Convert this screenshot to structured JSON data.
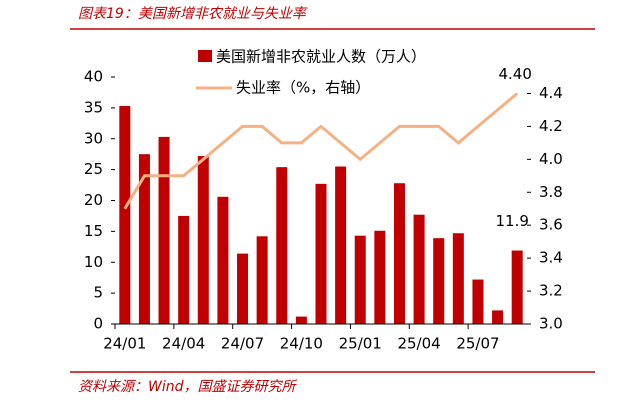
{
  "header": {
    "title": "图表19：美国新增非农就业与失业率"
  },
  "chart_data": {
    "type": "bar-line",
    "categories": [
      "24/01",
      null,
      null,
      "24/04",
      null,
      null,
      "24/07",
      null,
      null,
      "24/10",
      null,
      null,
      "25/01",
      null,
      null,
      "25/04",
      null,
      null,
      "25/07",
      null,
      null
    ],
    "series": [
      {
        "name": "美国新增非农就业人数（万人）",
        "type": "bar",
        "color": "#c00000",
        "values": [
          35.3,
          27.5,
          30.3,
          17.5,
          27.2,
          20.6,
          11.4,
          14.2,
          25.4,
          1.2,
          22.7,
          25.5,
          14.3,
          15.1,
          22.8,
          17.7,
          13.9,
          14.7,
          7.2,
          2.2,
          11.9
        ],
        "value_labels": [
          null,
          null,
          null,
          null,
          null,
          null,
          null,
          null,
          null,
          null,
          null,
          null,
          null,
          null,
          null,
          null,
          null,
          null,
          null,
          null,
          "11.9"
        ]
      },
      {
        "name": "失业率（%，右轴）",
        "type": "line",
        "axis": "y2",
        "color": "#f4b183",
        "values": [
          3.7,
          3.9,
          3.9,
          3.9,
          4.0,
          4.1,
          4.2,
          4.2,
          4.1,
          4.1,
          4.2,
          4.1,
          4.0,
          4.1,
          4.2,
          4.2,
          4.2,
          4.1,
          4.2,
          4.3,
          4.4
        ],
        "value_labels": [
          null,
          null,
          null,
          null,
          null,
          null,
          null,
          null,
          null,
          null,
          null,
          null,
          null,
          null,
          null,
          null,
          null,
          null,
          null,
          null,
          "4.40"
        ]
      }
    ],
    "ylim": [
      0,
      40
    ],
    "yticks": [
      0,
      5,
      10,
      15,
      20,
      25,
      30,
      35,
      40
    ],
    "y2lim": [
      3.0,
      4.5
    ],
    "y2ticks": [
      {
        "value": 3.0,
        "label": "3.0"
      },
      {
        "value": 3.2,
        "label": "3.2"
      },
      {
        "value": 3.4,
        "label": "3.4"
      },
      {
        "value": 3.6,
        "label": "3.6"
      },
      {
        "value": 3.8,
        "label": "3.8"
      },
      {
        "value": 4.0,
        "label": "4.0"
      },
      {
        "value": 4.2,
        "label": "4.2"
      },
      {
        "value": 4.4,
        "label": "4.4"
      }
    ]
  },
  "footer": {
    "source": "资料来源：Wind，国盛证券研究所"
  }
}
